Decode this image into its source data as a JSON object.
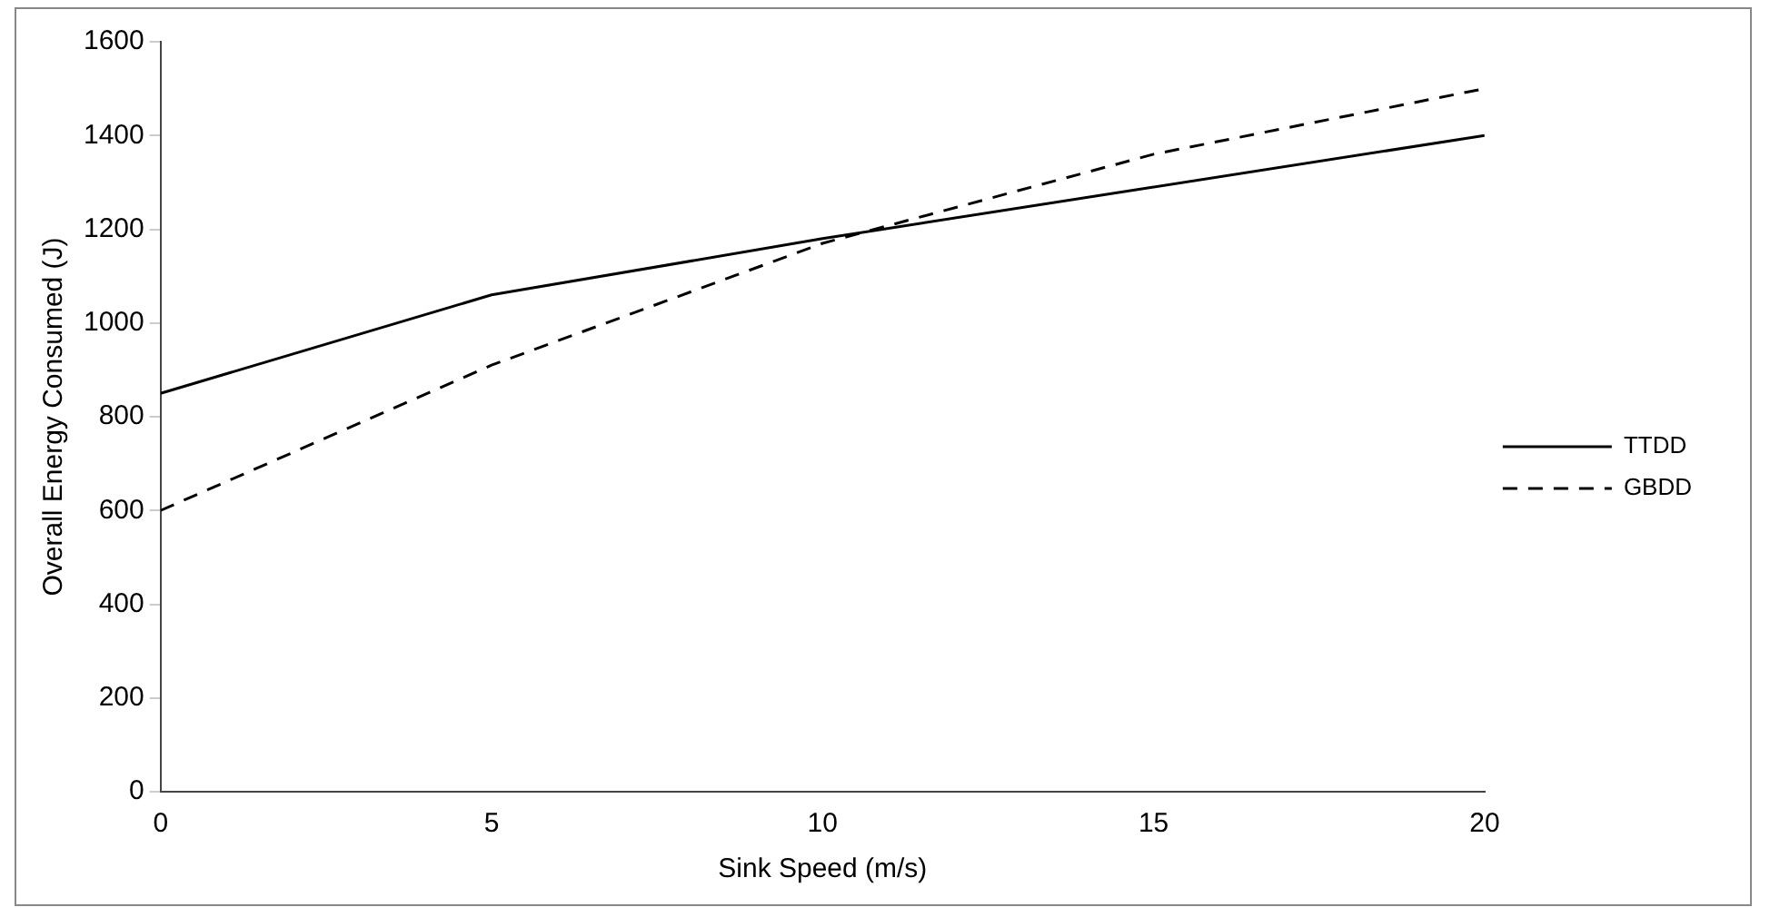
{
  "chart_data": {
    "type": "line",
    "xlabel": "Sink Speed (m/s)",
    "ylabel": "Overall Energy Consumed (J)",
    "x": [
      0,
      5,
      10,
      15,
      20
    ],
    "series": [
      {
        "name": "TTDD",
        "color": "#000000",
        "values": [
          850,
          1060,
          1180,
          1290,
          1400
        ],
        "line_style": "solid"
      },
      {
        "name": "GBDD",
        "color": "#000000",
        "values": [
          600,
          910,
          1170,
          1360,
          1500
        ],
        "line_style": "dashed"
      }
    ],
    "xlim": [
      0,
      20
    ],
    "xticks": [
      0,
      5,
      10,
      15,
      20
    ],
    "ylim": [
      0,
      1600
    ],
    "yticks": [
      0,
      200,
      400,
      600,
      800,
      1000,
      1200,
      1400,
      1600
    ],
    "grid": false,
    "legend": "right",
    "marker": "none"
  }
}
